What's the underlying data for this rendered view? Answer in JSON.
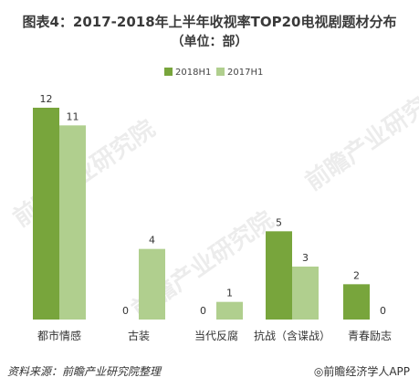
{
  "title": "图表4：2017-2018年上半年收视率TOP20电视剧题材分布",
  "subtitle": "（单位：部）",
  "source": "资料来源：前瞻产业研究院整理",
  "brand": "◎前瞻经济学人APP",
  "watermark": "前瞻产业研究院",
  "colors": {
    "s2018": "#78a53c",
    "s2017": "#b0cf8e"
  },
  "chart_data": {
    "type": "bar",
    "categories": [
      "都市情感",
      "古装",
      "当代反腐",
      "抗战（含谍战）",
      "青春励志"
    ],
    "series": [
      {
        "name": "2018H1",
        "values": [
          12,
          0,
          0,
          5,
          2
        ]
      },
      {
        "name": "2017H1",
        "values": [
          11,
          4,
          1,
          3,
          0
        ]
      }
    ],
    "ylim": [
      0,
      12
    ],
    "legend": "top-center",
    "grid": false
  }
}
